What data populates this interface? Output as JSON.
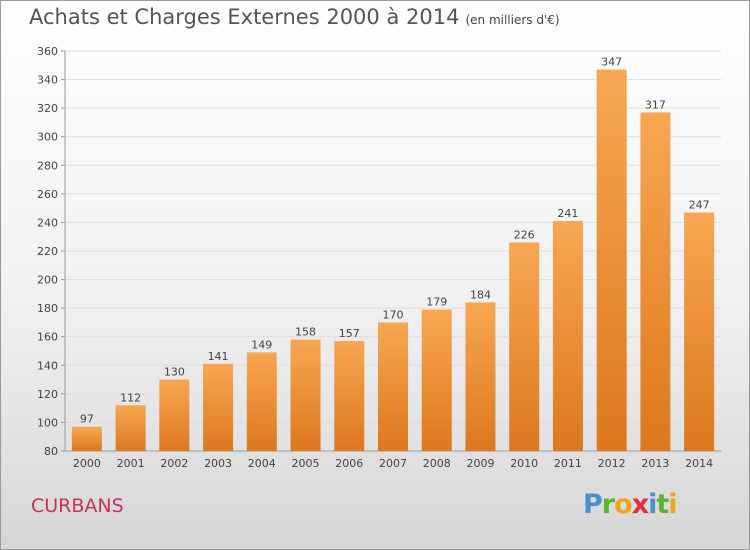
{
  "title": "Achats et Charges Externes 2000 à 2014",
  "subtitle": "(en milliers d'€)",
  "city": "CURBANS",
  "logo": {
    "text": "Proxiti",
    "letters": [
      "P",
      "r",
      "o",
      "x",
      "i",
      "t",
      "i"
    ],
    "colors": [
      "#4a8fd0",
      "#59b52f",
      "#f0a417",
      "#e52d3f",
      "#4a8fd0",
      "#59b52f",
      "#f0a417"
    ]
  },
  "chart_data": {
    "type": "bar",
    "title": "Achats et Charges Externes 2000 à 2014",
    "subtitle": "(en milliers d'€)",
    "xlabel": "",
    "ylabel": "",
    "categories": [
      "2000",
      "2001",
      "2002",
      "2003",
      "2004",
      "2005",
      "2006",
      "2007",
      "2008",
      "2009",
      "2010",
      "2011",
      "2012",
      "2013",
      "2014"
    ],
    "values": [
      97,
      112,
      130,
      141,
      149,
      158,
      157,
      170,
      179,
      184,
      226,
      241,
      347,
      317,
      247
    ],
    "ylim": [
      80,
      360
    ],
    "yticks": [
      80,
      100,
      120,
      140,
      160,
      180,
      200,
      220,
      240,
      260,
      280,
      300,
      320,
      340,
      360
    ],
    "grid": true,
    "colors": {
      "bar_top": "#f8a752",
      "bar_bottom": "#dd781e",
      "grid": "#dedede",
      "axis": "#9a9a9a"
    }
  }
}
